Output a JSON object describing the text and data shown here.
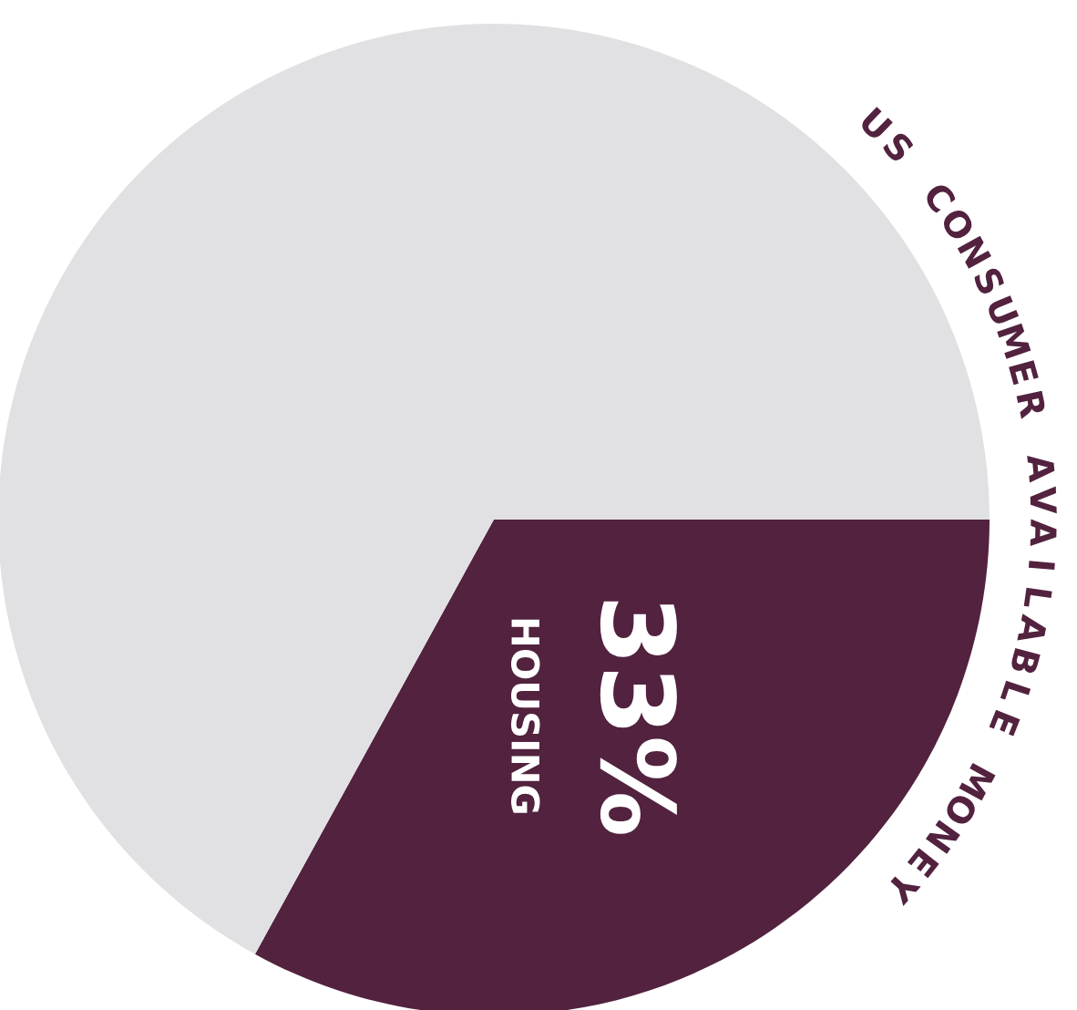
{
  "chart_data": {
    "type": "pie",
    "title": "US CONSUMER AVAILABLE MONEY",
    "categories": [
      "HOUSING",
      null
    ],
    "values": [
      33,
      67
    ],
    "value_labels": [
      "33%",
      null
    ],
    "colors": [
      "#52223f",
      "#e1e1e3"
    ]
  }
}
